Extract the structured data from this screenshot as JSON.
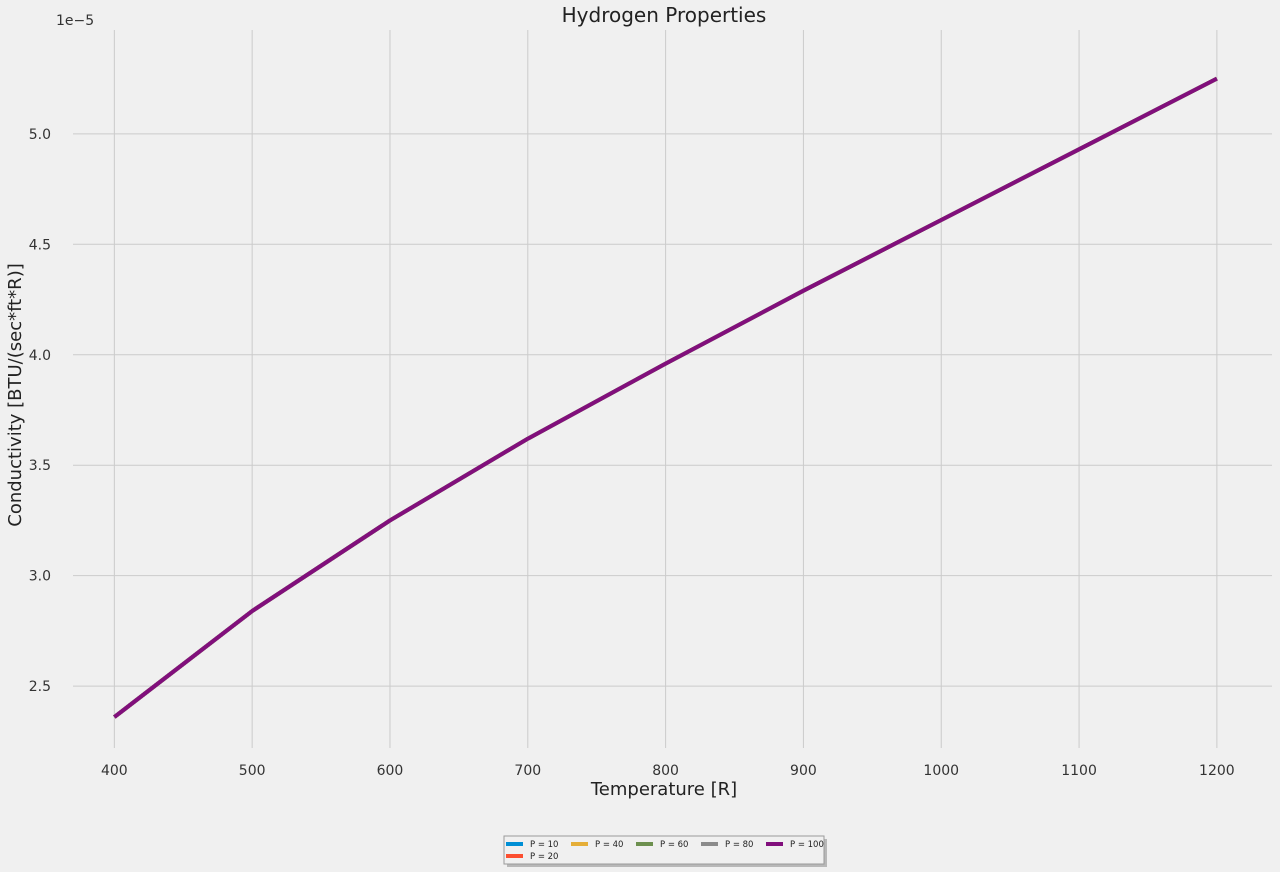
{
  "chart_data": {
    "type": "line",
    "title": "Hydrogen Properties",
    "xlabel": "Temperature [R]",
    "ylabel": "Conductivity [BTU/(sec*ft*R)]",
    "y_offset_label": "1e−5",
    "xlim": [
      370,
      1240
    ],
    "ylim": [
      2.22,
      5.47
    ],
    "xticks": [
      400,
      500,
      600,
      700,
      800,
      900,
      1000,
      1100,
      1200
    ],
    "xtick_labels": [
      "400",
      "500",
      "600",
      "700",
      "800",
      "900",
      "1000",
      "1100",
      "1200"
    ],
    "yticks": [
      2.5,
      3.0,
      3.5,
      4.0,
      4.5,
      5.0
    ],
    "ytick_labels": [
      "2.5",
      "3.0",
      "3.5",
      "4.0",
      "4.5",
      "5.0"
    ],
    "grid": true,
    "legend_position": "bottom-center",
    "x": [
      400,
      500,
      600,
      700,
      800,
      900,
      1000,
      1100,
      1200
    ],
    "series": [
      {
        "name": "P = 10",
        "color": "#008fd5",
        "values": [
          2.36,
          2.84,
          3.25,
          3.62,
          3.96,
          4.29,
          4.61,
          4.93,
          5.25
        ]
      },
      {
        "name": "P = 20",
        "color": "#fc4f30",
        "values": [
          2.36,
          2.84,
          3.25,
          3.62,
          3.96,
          4.29,
          4.61,
          4.93,
          5.25
        ]
      },
      {
        "name": "P = 40",
        "color": "#e5ae38",
        "values": [
          2.36,
          2.84,
          3.25,
          3.62,
          3.96,
          4.29,
          4.61,
          4.93,
          5.25
        ]
      },
      {
        "name": "P = 60",
        "color": "#6d904f",
        "values": [
          2.36,
          2.84,
          3.25,
          3.62,
          3.96,
          4.29,
          4.61,
          4.93,
          5.25
        ]
      },
      {
        "name": "P = 80",
        "color": "#8b8b8b",
        "values": [
          2.36,
          2.84,
          3.25,
          3.62,
          3.96,
          4.29,
          4.61,
          4.93,
          5.25
        ]
      },
      {
        "name": "P = 100",
        "color": "#810f7c",
        "values": [
          2.36,
          2.84,
          3.25,
          3.62,
          3.96,
          4.29,
          4.61,
          4.93,
          5.25
        ]
      }
    ]
  }
}
